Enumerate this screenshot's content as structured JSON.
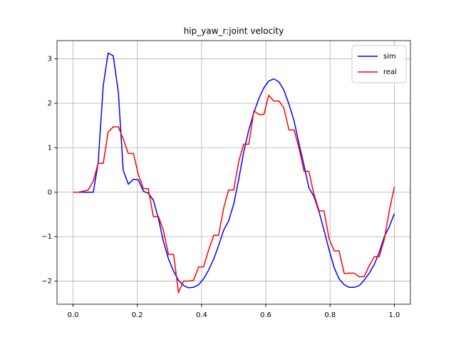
{
  "chart_data": {
    "type": "line",
    "title": "hip_yaw_r:joint velocity",
    "x": [
      0,
      0.016,
      0.031,
      0.047,
      0.063,
      0.078,
      0.094,
      0.109,
      0.125,
      0.141,
      0.156,
      0.172,
      0.188,
      0.203,
      0.219,
      0.234,
      0.25,
      0.266,
      0.281,
      0.297,
      0.313,
      0.328,
      0.344,
      0.359,
      0.375,
      0.391,
      0.406,
      0.422,
      0.438,
      0.453,
      0.469,
      0.484,
      0.5,
      0.516,
      0.531,
      0.547,
      0.563,
      0.578,
      0.594,
      0.609,
      0.625,
      0.641,
      0.656,
      0.672,
      0.688,
      0.703,
      0.719,
      0.734,
      0.75,
      0.766,
      0.781,
      0.797,
      0.813,
      0.828,
      0.844,
      0.859,
      0.875,
      0.891,
      0.906,
      0.922,
      0.938,
      0.953,
      0.969,
      0.984,
      1
    ],
    "series": [
      {
        "name": "sim",
        "color": "#0000ff",
        "values": [
          0,
          0,
          0,
          0,
          0,
          0.65,
          2.4,
          3.13,
          3.07,
          2.25,
          0.5,
          0.18,
          0.29,
          0.28,
          0.02,
          -0.02,
          -0.18,
          -0.6,
          -1.1,
          -1.5,
          -1.78,
          -1.98,
          -2.1,
          -2.15,
          -2.14,
          -2.08,
          -1.95,
          -1.75,
          -1.5,
          -1.2,
          -0.85,
          -0.65,
          -0.27,
          0.3,
          0.9,
          1.4,
          1.8,
          2.1,
          2.35,
          2.5,
          2.55,
          2.48,
          2.3,
          1.98,
          1.6,
          1.1,
          0.6,
          0.1,
          -0.1,
          -0.45,
          -0.85,
          -1.3,
          -1.7,
          -1.95,
          -2.08,
          -2.14,
          -2.14,
          -2.1,
          -1.98,
          -1.82,
          -1.62,
          -1.35,
          -1.0,
          -0.78,
          -0.48
        ]
      },
      {
        "name": "real",
        "color": "#ff0000",
        "values": [
          0,
          0,
          0.02,
          0.05,
          0.25,
          0.65,
          0.65,
          1.35,
          1.47,
          1.47,
          1.2,
          0.87,
          0.87,
          0.4,
          0.08,
          0.08,
          -0.55,
          -0.55,
          -0.85,
          -1.4,
          -1.4,
          -2.25,
          -2.0,
          -2.0,
          -1.98,
          -1.68,
          -1.68,
          -1.3,
          -0.97,
          -0.97,
          -0.35,
          0.05,
          0.05,
          0.7,
          1.08,
          1.08,
          1.83,
          1.75,
          1.75,
          2.18,
          2.05,
          2.05,
          1.9,
          1.4,
          1.4,
          1.0,
          0.47,
          0.47,
          -0.05,
          -0.42,
          -0.42,
          -1.05,
          -1.32,
          -1.32,
          -1.83,
          -1.82,
          -1.82,
          -1.9,
          -1.9,
          -1.65,
          -1.45,
          -1.45,
          -1.05,
          -0.43,
          0.12
        ]
      }
    ],
    "xlim": [
      -0.05,
      1.05
    ],
    "ylim": [
      -2.52,
      3.41
    ],
    "xticks": [
      {
        "value": 0,
        "label": "0.0"
      },
      {
        "value": 0.2,
        "label": "0.2"
      },
      {
        "value": 0.4,
        "label": "0.4"
      },
      {
        "value": 0.6,
        "label": "0.6"
      },
      {
        "value": 0.8,
        "label": "0.8"
      },
      {
        "value": 1,
        "label": "1.0"
      }
    ],
    "yticks": [
      {
        "value": -2,
        "label": "−2"
      },
      {
        "value": -1,
        "label": "−1"
      },
      0,
      1,
      2,
      3
    ],
    "grid": true,
    "legend": "upper-right"
  }
}
